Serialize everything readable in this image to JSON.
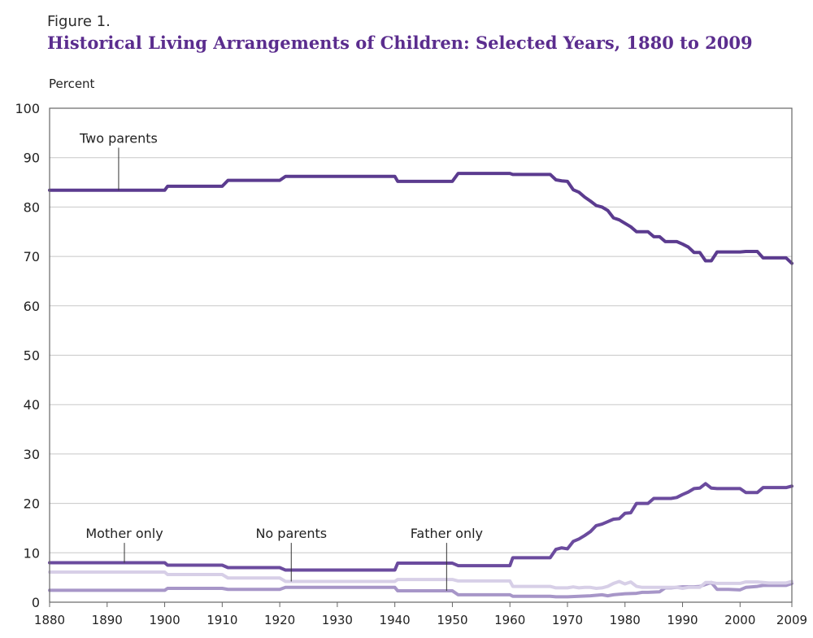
{
  "figure_label": "Figure 1.",
  "title": "Historical Living Arrangements of Children: Selected Years, 1880 to 2009",
  "colors": {
    "title": "#5b2d8e",
    "two_parents": "#5b3b8f",
    "mother_only": "#6b4b9e",
    "father_only": "#a796c8",
    "no_parents": "#d7cfe7",
    "grid": "#c8c8c8",
    "frame": "#666666"
  },
  "chart_data": {
    "type": "line",
    "title": "Historical Living Arrangements of Children: Selected Years, 1880 to 2009",
    "xlabel": "",
    "ylabel": "Percent",
    "xlim": [
      1880,
      2009
    ],
    "ylim": [
      0,
      100
    ],
    "x_ticks": [
      "1880",
      "1890",
      "1900",
      "1910",
      "1920",
      "1930",
      "1940",
      "1950",
      "1960",
      "1970",
      "1980",
      "1990",
      "2000",
      "2009"
    ],
    "y_ticks": [
      "0",
      "10",
      "20",
      "30",
      "40",
      "50",
      "60",
      "70",
      "80",
      "90",
      "100"
    ],
    "grid": true,
    "legend": "none",
    "annotations": [
      {
        "text": "Two parents",
        "x": 1892,
        "y": 83.4,
        "label_y": 93
      },
      {
        "text": "Mother only",
        "x": 1893,
        "y": 8,
        "label_y": 13
      },
      {
        "text": "No parents",
        "x": 1922,
        "y": 4.2,
        "label_y": 13
      },
      {
        "text": "Father only",
        "x": 1949,
        "y": 2.3,
        "label_y": 13
      }
    ],
    "series": [
      {
        "name": "Two parents",
        "key": "two_parents",
        "points": [
          [
            1880,
            83.4
          ],
          [
            1900,
            83.4
          ],
          [
            1900.5,
            84.2
          ],
          [
            1910,
            84.2
          ],
          [
            1911,
            85.4
          ],
          [
            1920,
            85.4
          ],
          [
            1921,
            86.2
          ],
          [
            1940,
            86.2
          ],
          [
            1940.5,
            85.2
          ],
          [
            1950,
            85.2
          ],
          [
            1951,
            86.8
          ],
          [
            1960,
            86.8
          ],
          [
            1960.5,
            86.6
          ],
          [
            1967,
            86.6
          ],
          [
            1968,
            85.5
          ],
          [
            1969,
            85.3
          ],
          [
            1970,
            85.2
          ],
          [
            1971,
            83.5
          ],
          [
            1972,
            83.0
          ],
          [
            1973,
            82.0
          ],
          [
            1974,
            81.2
          ],
          [
            1975,
            80.3
          ],
          [
            1976,
            80.0
          ],
          [
            1977,
            79.3
          ],
          [
            1978,
            77.8
          ],
          [
            1979,
            77.4
          ],
          [
            1980,
            76.7
          ],
          [
            1981,
            76.0
          ],
          [
            1982,
            75.0
          ],
          [
            1983,
            75.0
          ],
          [
            1984,
            75.0
          ],
          [
            1985,
            74.0
          ],
          [
            1986,
            74.0
          ],
          [
            1987,
            73.0
          ],
          [
            1988,
            73.0
          ],
          [
            1989,
            73.0
          ],
          [
            1990,
            72.5
          ],
          [
            1991,
            71.9
          ],
          [
            1992,
            70.8
          ],
          [
            1993,
            70.8
          ],
          [
            1994,
            69.1
          ],
          [
            1995,
            69.1
          ],
          [
            1996,
            70.9
          ],
          [
            1997,
            70.9
          ],
          [
            1998,
            70.9
          ],
          [
            1999,
            70.9
          ],
          [
            2000,
            70.9
          ],
          [
            2001,
            71.0
          ],
          [
            2002,
            71.0
          ],
          [
            2003,
            71.0
          ],
          [
            2004,
            69.7
          ],
          [
            2005,
            69.7
          ],
          [
            2006,
            69.7
          ],
          [
            2007,
            69.7
          ],
          [
            2008,
            69.7
          ],
          [
            2009,
            68.6
          ]
        ]
      },
      {
        "name": "Mother only",
        "key": "mother_only",
        "points": [
          [
            1880,
            8.0
          ],
          [
            1900,
            8.0
          ],
          [
            1900.5,
            7.5
          ],
          [
            1910,
            7.5
          ],
          [
            1911,
            7.0
          ],
          [
            1920,
            7.0
          ],
          [
            1921,
            6.5
          ],
          [
            1940,
            6.5
          ],
          [
            1940.5,
            7.9
          ],
          [
            1950,
            7.9
          ],
          [
            1951,
            7.4
          ],
          [
            1960,
            7.4
          ],
          [
            1960.5,
            9.0
          ],
          [
            1967,
            9.0
          ],
          [
            1968,
            10.7
          ],
          [
            1969,
            11.0
          ],
          [
            1970,
            10.8
          ],
          [
            1971,
            12.3
          ],
          [
            1972,
            12.8
          ],
          [
            1973,
            13.5
          ],
          [
            1974,
            14.3
          ],
          [
            1975,
            15.5
          ],
          [
            1976,
            15.8
          ],
          [
            1977,
            16.3
          ],
          [
            1978,
            16.8
          ],
          [
            1979,
            16.9
          ],
          [
            1980,
            18.0
          ],
          [
            1981,
            18.1
          ],
          [
            1982,
            20.0
          ],
          [
            1983,
            20.0
          ],
          [
            1984,
            20.0
          ],
          [
            1985,
            21.0
          ],
          [
            1986,
            21.0
          ],
          [
            1987,
            21.0
          ],
          [
            1988,
            21.0
          ],
          [
            1989,
            21.2
          ],
          [
            1990,
            21.8
          ],
          [
            1991,
            22.3
          ],
          [
            1992,
            23.0
          ],
          [
            1993,
            23.1
          ],
          [
            1994,
            24.0
          ],
          [
            1995,
            23.1
          ],
          [
            1996,
            23.0
          ],
          [
            1997,
            23.0
          ],
          [
            1998,
            23.0
          ],
          [
            1999,
            23.0
          ],
          [
            2000,
            23.0
          ],
          [
            2001,
            22.2
          ],
          [
            2002,
            22.2
          ],
          [
            2003,
            22.2
          ],
          [
            2004,
            23.2
          ],
          [
            2005,
            23.2
          ],
          [
            2006,
            23.2
          ],
          [
            2007,
            23.2
          ],
          [
            2008,
            23.2
          ],
          [
            2009,
            23.5
          ]
        ]
      },
      {
        "name": "No parents",
        "key": "no_parents",
        "points": [
          [
            1880,
            6.1
          ],
          [
            1900,
            6.1
          ],
          [
            1900.5,
            5.6
          ],
          [
            1910,
            5.6
          ],
          [
            1911,
            4.9
          ],
          [
            1920,
            4.9
          ],
          [
            1921,
            4.2
          ],
          [
            1940,
            4.2
          ],
          [
            1940.5,
            4.6
          ],
          [
            1950,
            4.6
          ],
          [
            1951,
            4.3
          ],
          [
            1960,
            4.3
          ],
          [
            1960.5,
            3.2
          ],
          [
            1967,
            3.2
          ],
          [
            1968,
            2.9
          ],
          [
            1970,
            2.9
          ],
          [
            1971,
            3.1
          ],
          [
            1972,
            2.9
          ],
          [
            1973,
            3.0
          ],
          [
            1974,
            3.0
          ],
          [
            1975,
            2.8
          ],
          [
            1976,
            2.9
          ],
          [
            1977,
            3.2
          ],
          [
            1978,
            3.8
          ],
          [
            1979,
            4.2
          ],
          [
            1980,
            3.7
          ],
          [
            1981,
            4.1
          ],
          [
            1982,
            3.2
          ],
          [
            1983,
            3.0
          ],
          [
            1984,
            3.0
          ],
          [
            1985,
            3.0
          ],
          [
            1986,
            3.0
          ],
          [
            1987,
            3.0
          ],
          [
            1988,
            3.0
          ],
          [
            1989,
            3.0
          ],
          [
            1990,
            2.8
          ],
          [
            1991,
            3.0
          ],
          [
            1992,
            3.0
          ],
          [
            1993,
            3.0
          ],
          [
            1994,
            4.0
          ],
          [
            1995,
            4.0
          ],
          [
            1996,
            3.8
          ],
          [
            1997,
            3.8
          ],
          [
            1998,
            3.8
          ],
          [
            1999,
            3.8
          ],
          [
            2000,
            3.8
          ],
          [
            2001,
            4.1
          ],
          [
            2002,
            4.1
          ],
          [
            2003,
            4.1
          ],
          [
            2004,
            4.0
          ],
          [
            2005,
            3.9
          ],
          [
            2006,
            3.9
          ],
          [
            2007,
            3.9
          ],
          [
            2008,
            3.9
          ],
          [
            2009,
            4.2
          ]
        ]
      },
      {
        "name": "Father only",
        "key": "father_only",
        "points": [
          [
            1880,
            2.4
          ],
          [
            1900,
            2.4
          ],
          [
            1900.5,
            2.8
          ],
          [
            1910,
            2.8
          ],
          [
            1911,
            2.6
          ],
          [
            1920,
            2.6
          ],
          [
            1921,
            3.0
          ],
          [
            1940,
            3.0
          ],
          [
            1940.5,
            2.3
          ],
          [
            1950,
            2.3
          ],
          [
            1951,
            1.5
          ],
          [
            1960,
            1.5
          ],
          [
            1960.5,
            1.2
          ],
          [
            1967,
            1.2
          ],
          [
            1968,
            1.1
          ],
          [
            1970,
            1.1
          ],
          [
            1972,
            1.2
          ],
          [
            1974,
            1.3
          ],
          [
            1975,
            1.4
          ],
          [
            1976,
            1.5
          ],
          [
            1977,
            1.3
          ],
          [
            1978,
            1.5
          ],
          [
            1980,
            1.7
          ],
          [
            1982,
            1.8
          ],
          [
            1983,
            2.0
          ],
          [
            1984,
            2.0
          ],
          [
            1986,
            2.1
          ],
          [
            1987,
            2.9
          ],
          [
            1988,
            2.9
          ],
          [
            1990,
            3.1
          ],
          [
            1992,
            3.1
          ],
          [
            1993,
            3.2
          ],
          [
            1995,
            4.0
          ],
          [
            1996,
            2.6
          ],
          [
            1998,
            2.6
          ],
          [
            2000,
            2.5
          ],
          [
            2001,
            3.0
          ],
          [
            2003,
            3.2
          ],
          [
            2004,
            3.4
          ],
          [
            2006,
            3.4
          ],
          [
            2008,
            3.4
          ],
          [
            2009,
            3.8
          ]
        ]
      }
    ]
  }
}
